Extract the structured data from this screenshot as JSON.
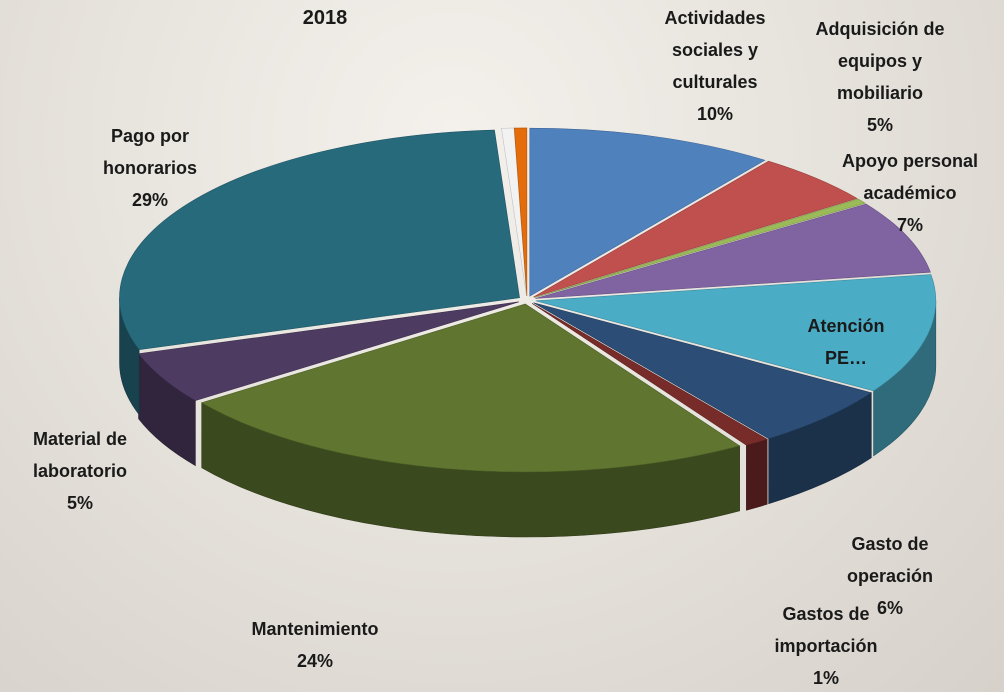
{
  "chart_data": {
    "type": "pie3d",
    "title": "2018",
    "categories": [
      "Actividades sociales y culturales",
      "Adquisición de equipos y mobiliario",
      null,
      "Apoyo personal académico",
      "Atención PE…",
      "Gasto de operación",
      "Gastos de importación",
      "Mantenimiento",
      "Material de laboratorio",
      "Pago por honorarios",
      null,
      null
    ],
    "values": [
      10,
      5,
      0.5,
      7,
      11.5,
      6,
      1,
      24,
      5,
      29,
      0.5,
      0.5
    ],
    "value_labels": [
      "10%",
      "5%",
      null,
      "7%",
      null,
      "6%",
      "1%",
      "24%",
      "5%",
      "29%",
      null,
      null
    ],
    "colors": [
      "#4f81bd",
      "#c0504d",
      "#9bbb59",
      "#8064a2",
      "#4bacc6",
      "#2c4d75",
      "#772c2a",
      "#5f7530",
      "#4d3b62",
      "#276a7c",
      "#f2f2f2",
      "#e46c0a"
    ]
  }
}
